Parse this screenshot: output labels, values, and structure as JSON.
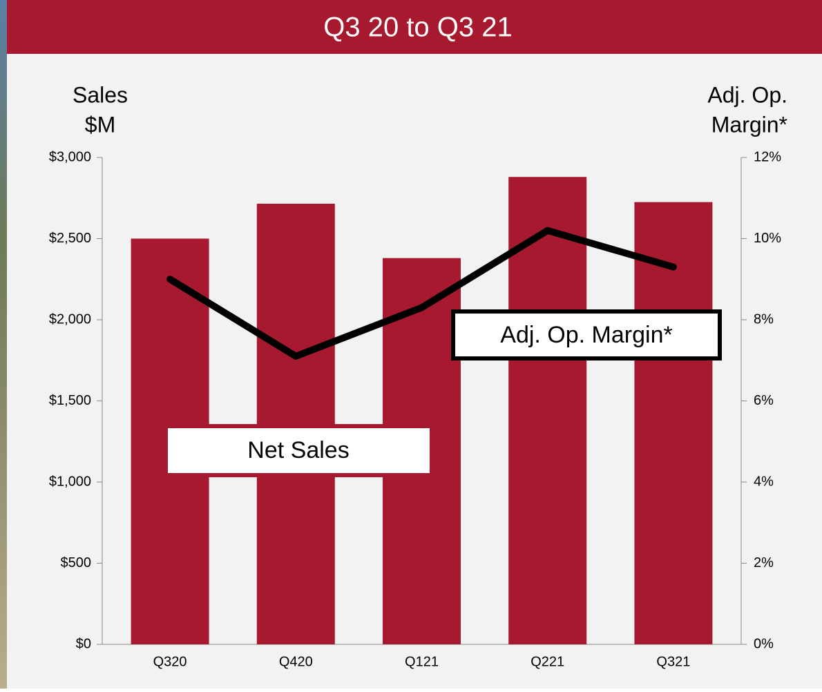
{
  "chart_data": {
    "type": "bar-line",
    "title": "Q3 20 to Q3 21",
    "ylabel": [
      "Sales",
      "$M"
    ],
    "y2label": [
      "Adj. Op.",
      "Margin*"
    ],
    "categories": [
      "Q320",
      "Q420",
      "Q121",
      "Q221",
      "Q321"
    ],
    "series": [
      {
        "name": "Net Sales",
        "type": "bar",
        "color": "#a6192e",
        "values": [
          2500,
          2715,
          2380,
          2880,
          2725
        ]
      },
      {
        "name": "Adj. Op. Margin*",
        "type": "line",
        "color": "#000000",
        "axis": "y2",
        "values": [
          9.0,
          7.1,
          8.3,
          10.2,
          9.3
        ]
      }
    ],
    "ylim": [
      0,
      3000
    ],
    "yticks": [
      {
        "value": 0,
        "label": "$0"
      },
      {
        "value": 500,
        "label": "$500"
      },
      {
        "value": 1000,
        "label": "$1,000"
      },
      {
        "value": 1500,
        "label": "$1,500"
      },
      {
        "value": 2000,
        "label": "$2,000"
      },
      {
        "value": 2500,
        "label": "$2,500"
      },
      {
        "value": 3000,
        "label": "$3,000"
      }
    ],
    "y2lim": [
      0,
      12
    ],
    "y2ticks": [
      {
        "value": 0,
        "label": "0%"
      },
      {
        "value": 2,
        "label": "2%"
      },
      {
        "value": 4,
        "label": "4%"
      },
      {
        "value": 6,
        "label": "6%"
      },
      {
        "value": 8,
        "label": "8%"
      },
      {
        "value": 10,
        "label": "10%"
      },
      {
        "value": 12,
        "label": "12%"
      }
    ]
  }
}
